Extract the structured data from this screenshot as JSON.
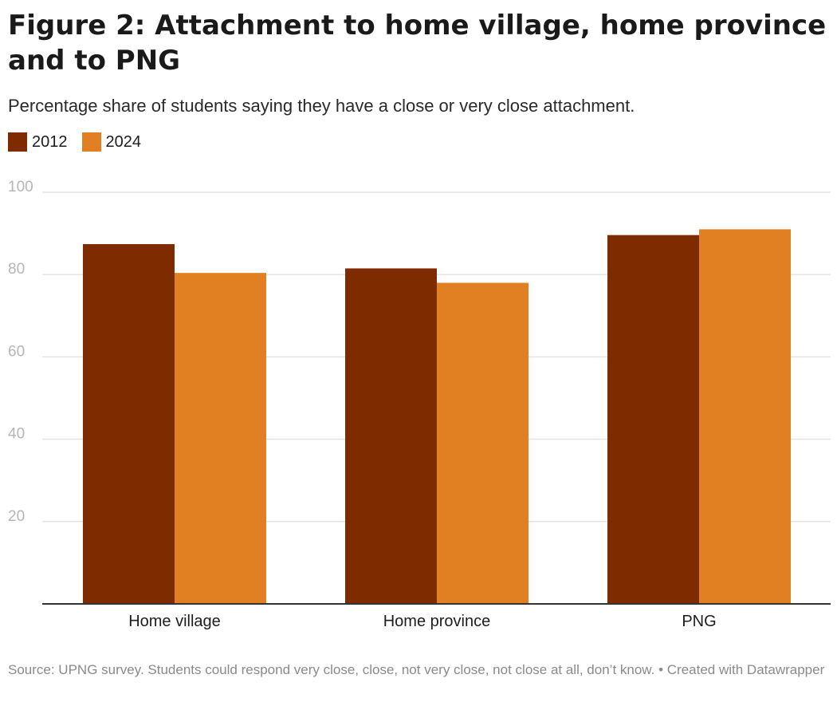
{
  "title": "Figure 2: Attachment to home village, home province and to PNG",
  "subtitle": "Percentage share of students saying they have a close or very close attachment.",
  "source": "Source: UPNG survey. Students could respond very close, close, not very close, not close at all, don’t know. • Created with Datawrapper",
  "colors": {
    "series_2012": "#7f2b00",
    "series_2024": "#e08022",
    "grid": "#e4e4e4",
    "axis": "#333333",
    "tick": "#b5b5b5"
  },
  "chart_data": {
    "type": "bar",
    "categories": [
      "Home village",
      "Home province",
      "PNG"
    ],
    "series": [
      {
        "name": "2012",
        "values": [
          87.4,
          81.5,
          89.6
        ]
      },
      {
        "name": "2024",
        "values": [
          80.4,
          78.0,
          91.0
        ]
      }
    ],
    "yticks": [
      20,
      40,
      60,
      80,
      100
    ],
    "ylim": [
      0,
      100
    ],
    "grid": true,
    "legend": "top-left"
  }
}
